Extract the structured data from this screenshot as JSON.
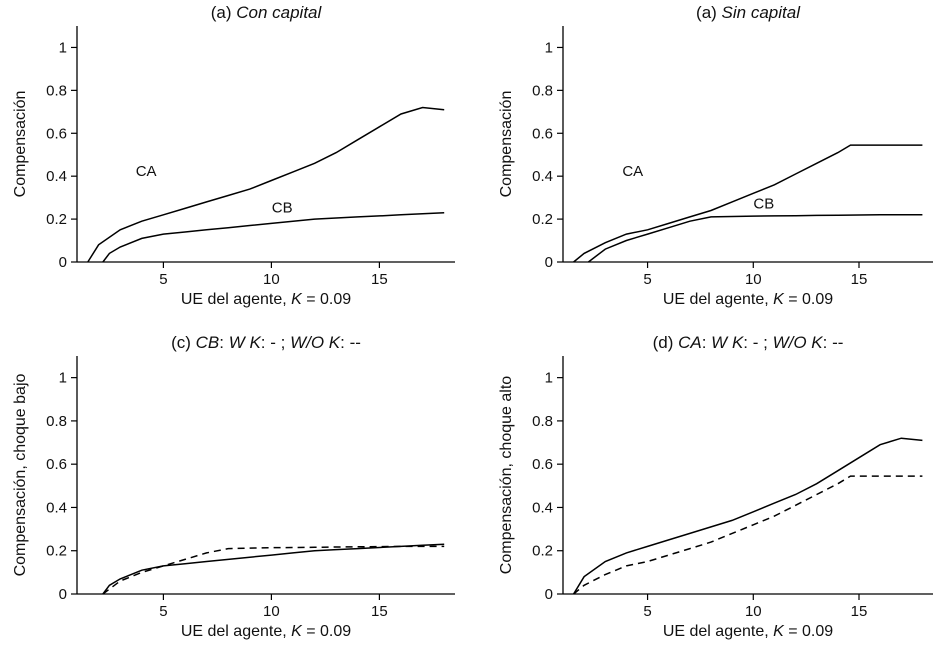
{
  "chart_data": [
    {
      "type": "line",
      "title_parts": [
        {
          "text": "(a) ",
          "italic": false
        },
        {
          "text": "Con capital",
          "italic": true
        }
      ],
      "xlabel_parts": [
        {
          "text": "UE del agente, ",
          "italic": false
        },
        {
          "text": "K",
          "italic": true
        },
        {
          "text": " = 0.09",
          "italic": false
        }
      ],
      "ylabel": "Compensación",
      "xlim": [
        1,
        18.5
      ],
      "ylim": [
        0,
        1.1
      ],
      "xticks": [
        5,
        10,
        15
      ],
      "yticks": [
        0,
        0.2,
        0.4,
        0.6,
        0.8,
        1
      ],
      "series": [
        {
          "name": "CA",
          "dash": "solid",
          "x": [
            1.5,
            2,
            3,
            4,
            5,
            6,
            7,
            8,
            9,
            10,
            11,
            12,
            13,
            14,
            15,
            16,
            17,
            18
          ],
          "y": [
            0.0,
            0.08,
            0.15,
            0.19,
            0.22,
            0.25,
            0.28,
            0.31,
            0.34,
            0.38,
            0.42,
            0.46,
            0.51,
            0.57,
            0.63,
            0.69,
            0.72,
            0.71
          ]
        },
        {
          "name": "CB",
          "dash": "solid",
          "x": [
            2.2,
            2.5,
            3,
            4,
            5,
            6,
            7,
            8,
            9,
            10,
            11,
            12,
            13,
            14,
            15,
            16,
            17,
            18
          ],
          "y": [
            0.0,
            0.04,
            0.07,
            0.11,
            0.13,
            0.14,
            0.15,
            0.16,
            0.17,
            0.18,
            0.19,
            0.2,
            0.205,
            0.21,
            0.215,
            0.22,
            0.225,
            0.23
          ]
        }
      ],
      "annotations": [
        {
          "text": "CA",
          "x": 4.2,
          "y": 0.4
        },
        {
          "text": "CB",
          "x": 10.5,
          "y": 0.23
        }
      ]
    },
    {
      "type": "line",
      "title_parts": [
        {
          "text": "(a) ",
          "italic": false
        },
        {
          "text": "Sin capital",
          "italic": true
        }
      ],
      "xlabel_parts": [
        {
          "text": "UE del agente, ",
          "italic": false
        },
        {
          "text": "K",
          "italic": true
        },
        {
          "text": " = 0.09",
          "italic": false
        }
      ],
      "ylabel": "Compensación",
      "xlim": [
        1,
        18.5
      ],
      "ylim": [
        0,
        1.1
      ],
      "xticks": [
        5,
        10,
        15
      ],
      "yticks": [
        0,
        0.2,
        0.4,
        0.6,
        0.8,
        1
      ],
      "series": [
        {
          "name": "CA",
          "dash": "solid",
          "x": [
            1.5,
            2,
            3,
            4,
            5,
            6,
            7,
            8,
            9,
            10,
            11,
            12,
            13,
            14,
            14.6,
            15,
            16,
            17,
            18
          ],
          "y": [
            0.0,
            0.04,
            0.09,
            0.13,
            0.15,
            0.18,
            0.21,
            0.24,
            0.28,
            0.32,
            0.36,
            0.41,
            0.46,
            0.51,
            0.545,
            0.545,
            0.545,
            0.545,
            0.545
          ]
        },
        {
          "name": "CB",
          "dash": "solid",
          "x": [
            2.2,
            3,
            4,
            5,
            6,
            7,
            8,
            9,
            10,
            11,
            12,
            13,
            14,
            15,
            16,
            17,
            18
          ],
          "y": [
            0.0,
            0.06,
            0.1,
            0.13,
            0.16,
            0.19,
            0.21,
            0.212,
            0.214,
            0.215,
            0.216,
            0.217,
            0.218,
            0.219,
            0.22,
            0.22,
            0.22
          ]
        }
      ],
      "annotations": [
        {
          "text": "CA",
          "x": 4.3,
          "y": 0.4
        },
        {
          "text": "CB",
          "x": 10.5,
          "y": 0.25
        }
      ]
    },
    {
      "type": "line",
      "title_parts": [
        {
          "text": "(c) ",
          "italic": false
        },
        {
          "text": "CB",
          "italic": true
        },
        {
          "text": ": ",
          "italic": false
        },
        {
          "text": "W K",
          "italic": true
        },
        {
          "text": ": - ; ",
          "italic": false
        },
        {
          "text": "W/O K",
          "italic": true
        },
        {
          "text": ": --",
          "italic": false
        }
      ],
      "xlabel_parts": [
        {
          "text": "UE del agente, ",
          "italic": false
        },
        {
          "text": "K",
          "italic": true
        },
        {
          "text": " = 0.09",
          "italic": false
        }
      ],
      "ylabel": "Compensación, choque bajo",
      "xlim": [
        1,
        18.5
      ],
      "ylim": [
        0,
        1.1
      ],
      "xticks": [
        5,
        10,
        15
      ],
      "yticks": [
        0,
        0.2,
        0.4,
        0.6,
        0.8,
        1
      ],
      "series": [
        {
          "name": "",
          "dash": "solid",
          "x": [
            2.2,
            2.5,
            3,
            4,
            5,
            6,
            7,
            8,
            9,
            10,
            11,
            12,
            13,
            14,
            15,
            16,
            17,
            18
          ],
          "y": [
            0.0,
            0.04,
            0.07,
            0.11,
            0.13,
            0.14,
            0.15,
            0.16,
            0.17,
            0.18,
            0.19,
            0.2,
            0.205,
            0.21,
            0.215,
            0.22,
            0.225,
            0.23
          ]
        },
        {
          "name": "",
          "dash": "dashed",
          "x": [
            2.2,
            3,
            4,
            5,
            6,
            7,
            8,
            9,
            10,
            11,
            12,
            13,
            14,
            15,
            16,
            17,
            18
          ],
          "y": [
            0.0,
            0.06,
            0.1,
            0.13,
            0.16,
            0.19,
            0.21,
            0.212,
            0.214,
            0.215,
            0.216,
            0.217,
            0.218,
            0.219,
            0.22,
            0.22,
            0.22
          ]
        }
      ],
      "annotations": []
    },
    {
      "type": "line",
      "title_parts": [
        {
          "text": "(d) ",
          "italic": false
        },
        {
          "text": "CA",
          "italic": true
        },
        {
          "text": ": ",
          "italic": false
        },
        {
          "text": "W K",
          "italic": true
        },
        {
          "text": ": - ; ",
          "italic": false
        },
        {
          "text": "W/O K",
          "italic": true
        },
        {
          "text": ": --",
          "italic": false
        }
      ],
      "xlabel_parts": [
        {
          "text": "UE del agente, ",
          "italic": false
        },
        {
          "text": "K",
          "italic": true
        },
        {
          "text": " = 0.09",
          "italic": false
        }
      ],
      "ylabel": "Compensación, choque alto",
      "xlim": [
        1,
        18.5
      ],
      "ylim": [
        0,
        1.1
      ],
      "xticks": [
        5,
        10,
        15
      ],
      "yticks": [
        0,
        0.2,
        0.4,
        0.6,
        0.8,
        1
      ],
      "series": [
        {
          "name": "",
          "dash": "solid",
          "x": [
            1.5,
            2,
            3,
            4,
            5,
            6,
            7,
            8,
            9,
            10,
            11,
            12,
            13,
            14,
            15,
            16,
            17,
            18
          ],
          "y": [
            0.0,
            0.08,
            0.15,
            0.19,
            0.22,
            0.25,
            0.28,
            0.31,
            0.34,
            0.38,
            0.42,
            0.46,
            0.51,
            0.57,
            0.63,
            0.69,
            0.72,
            0.71
          ]
        },
        {
          "name": "",
          "dash": "dashed",
          "x": [
            1.5,
            2,
            3,
            4,
            5,
            6,
            7,
            8,
            9,
            10,
            11,
            12,
            13,
            14,
            14.6,
            15,
            16,
            17,
            18
          ],
          "y": [
            0.0,
            0.04,
            0.09,
            0.13,
            0.15,
            0.18,
            0.21,
            0.24,
            0.28,
            0.32,
            0.36,
            0.41,
            0.46,
            0.51,
            0.545,
            0.545,
            0.545,
            0.545,
            0.545
          ]
        }
      ],
      "annotations": []
    }
  ]
}
